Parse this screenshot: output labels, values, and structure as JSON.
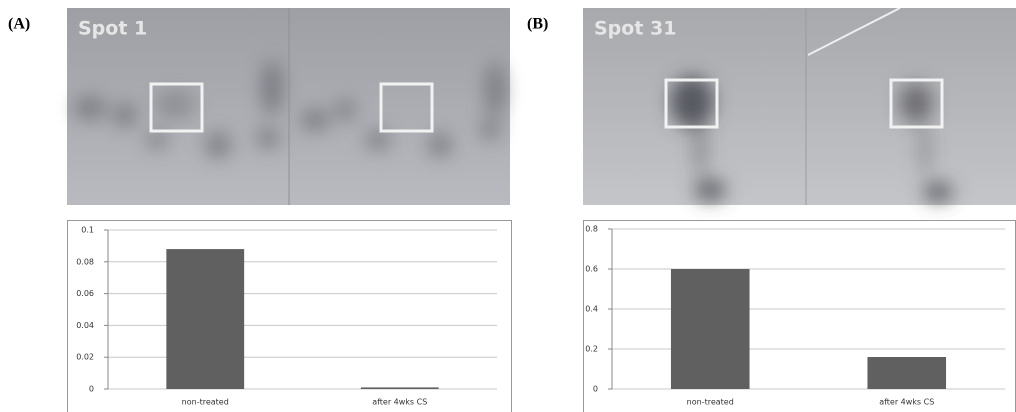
{
  "chart_data": [
    {
      "type": "bar",
      "panel_label": "(A)",
      "title": "Spot 1",
      "categories": [
        "non-treated",
        "after 4wks CS"
      ],
      "values": [
        0.088,
        0.001
      ],
      "color": "#606060",
      "ylim": [
        0,
        0.1
      ],
      "yticks": [
        0,
        0.02,
        0.04,
        0.06,
        0.08,
        0.1
      ],
      "grid": true
    },
    {
      "type": "bar",
      "panel_label": "(B)",
      "title": "Spot 31",
      "categories": [
        "non-treated",
        "after 4wks CS"
      ],
      "values": [
        0.6,
        0.16
      ],
      "color": "#606060",
      "ylim": [
        0,
        0.8
      ],
      "yticks": [
        0,
        0.2,
        0.4,
        0.6,
        0.8
      ],
      "grid": true
    }
  ]
}
